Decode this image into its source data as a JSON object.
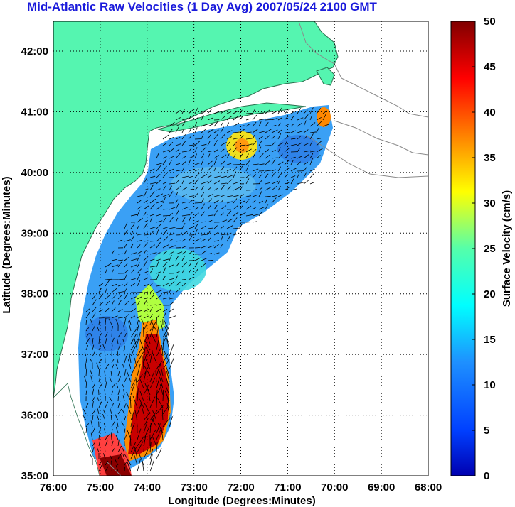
{
  "title": "Mid-Atlantic Raw Velocities (1 Day Avg) 2007/05/24 2100 GMT",
  "map": {
    "xlabel": "Longitude (Degrees:Minutes)",
    "ylabel": "Latitude (Degrees:Minutes)",
    "x_ticks": [
      "76:00",
      "75:00",
      "74:00",
      "73:00",
      "72:00",
      "71:00",
      "70:00",
      "69:00",
      "68:00"
    ],
    "y_ticks": [
      "42:00",
      "41:00",
      "40:00",
      "39:00",
      "38:00",
      "37:00",
      "36:00",
      "35:00"
    ],
    "land_color": "#55f5b0",
    "coast_color": "#7f7f7f"
  },
  "colorbar": {
    "label": "Surface Velocity (cm/s)",
    "ticks": [
      "50",
      "45",
      "40",
      "35",
      "30",
      "25",
      "20",
      "15",
      "10",
      "5",
      "0"
    ],
    "range": [
      0,
      50
    ],
    "colormap": "jet"
  }
}
